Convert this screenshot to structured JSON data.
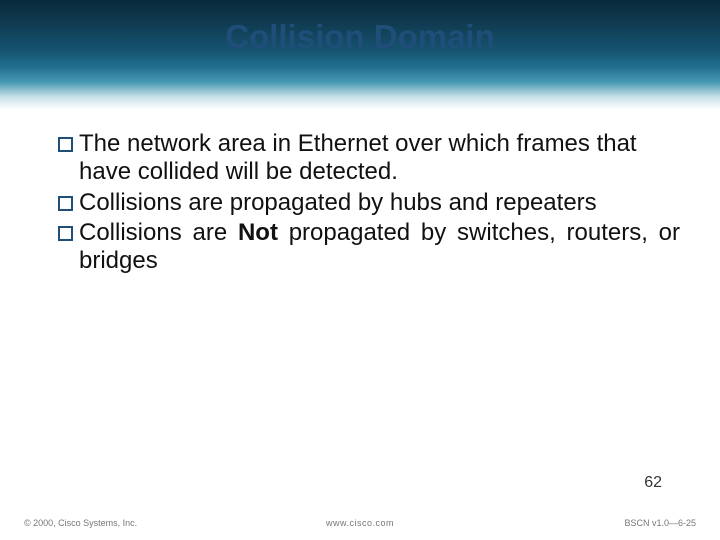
{
  "colors": {
    "title": "#1f4e79",
    "body": "#111111",
    "bullet_border": "#1f4e79",
    "footer": "#777777",
    "pagenum": "#333333"
  },
  "typography": {
    "title_fontsize": 33,
    "title_weight": "bold",
    "body_fontsize": 24,
    "body_lineheight": 1.18,
    "pagenum_fontsize": 16,
    "footer_fontsize": 9
  },
  "title": "Collision Domain",
  "bullets": [
    {
      "text_before": "The network area in Ethernet over which frames that have collided will be detected.",
      "bold": "",
      "text_after": "",
      "justify": false
    },
    {
      "text_before": "Collisions are propagated by hubs and repeaters",
      "bold": "",
      "text_after": "",
      "justify": false
    },
    {
      "text_before": "Collisions are ",
      "bold": "Not",
      "text_after": " propagated by switches, routers, or bridges",
      "justify": true
    }
  ],
  "page_number": "62",
  "footer": {
    "left": "© 2000, Cisco Systems, Inc.",
    "center": "www.cisco.com",
    "right": "BSCN v1.0—6-25"
  }
}
